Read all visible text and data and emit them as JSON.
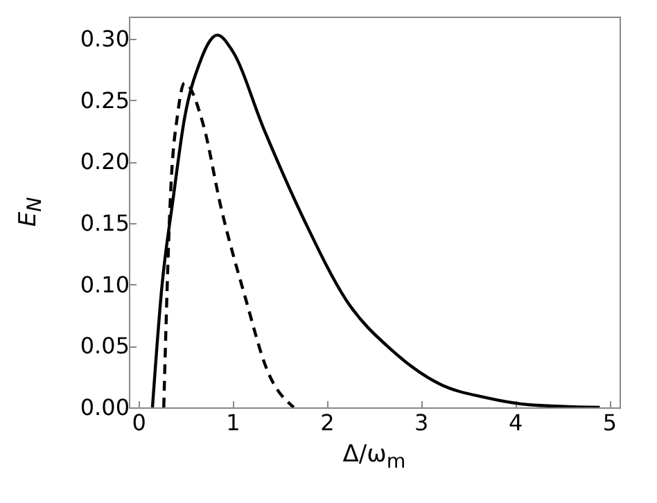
{
  "chart_data": {
    "type": "line",
    "xlabel": "Δ/ω$_{m}$",
    "ylabel": "E$_{N}$",
    "xlim": [
      -0.1,
      5.11
    ],
    "ylim": [
      0,
      0.318
    ],
    "xticks": [
      0,
      1,
      2,
      3,
      4,
      5
    ],
    "yticks": [
      {
        "value": 0,
        "label": "0.00"
      },
      0.05,
      {
        "value": 0.1,
        "label": "0.10"
      },
      0.15,
      {
        "value": 0.2,
        "label": "0.20"
      },
      0.25,
      {
        "value": 0.3,
        "label": "0.30"
      }
    ],
    "grid": false,
    "series": [
      {
        "color": "#000000",
        "line_style": "solid",
        "x": [
          0.15,
          0.25,
          0.37,
          0.49,
          0.65,
          0.84,
          1.0,
          1.33,
          1.77,
          2.21,
          2.7,
          3.2,
          3.69,
          4.18,
          4.9
        ],
        "values": [
          0,
          0.098,
          0.17,
          0.235,
          0.28,
          0.303,
          0.29,
          0.227,
          0.151,
          0.087,
          0.046,
          0.019,
          0.008,
          0.002,
          0
        ]
      },
      {
        "color": "#000000",
        "line_style": "dashed",
        "x": [
          0.27,
          0.34,
          0.42,
          0.49,
          0.69,
          0.88,
          1.13,
          1.37,
          1.65
        ],
        "values": [
          0,
          0.17,
          0.24,
          0.264,
          0.23,
          0.162,
          0.091,
          0.03,
          0
        ]
      }
    ]
  }
}
